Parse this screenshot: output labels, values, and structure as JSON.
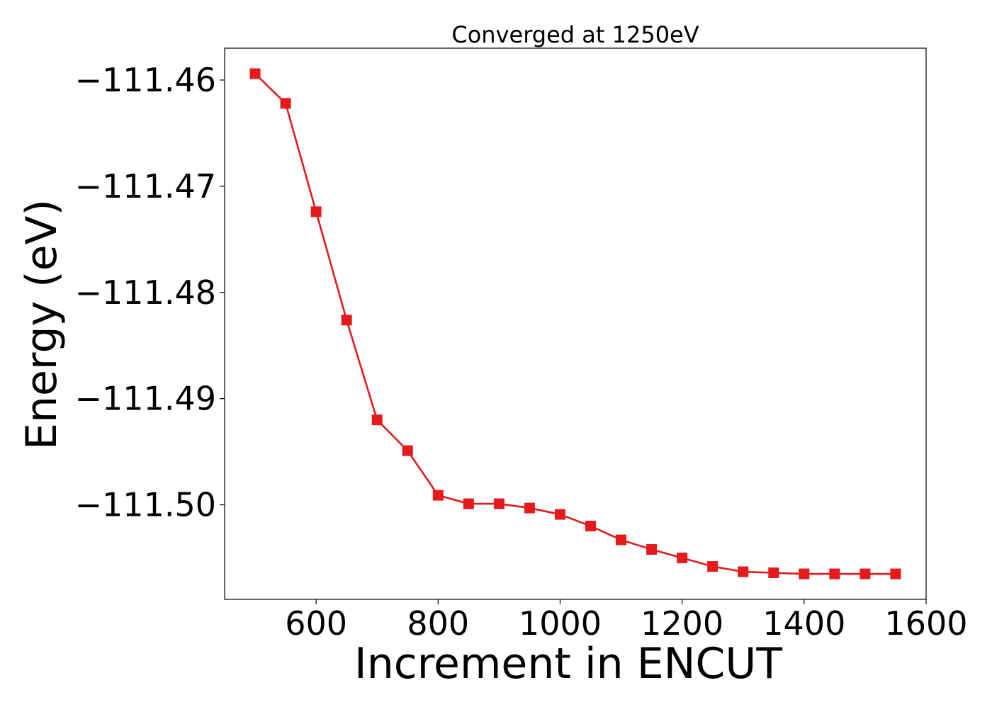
{
  "chart_data": {
    "type": "line",
    "title": "Converged at 1250eV",
    "xlabel": "Increment in ENCUT",
    "ylabel": "Energy (eV)",
    "xlim": [
      450,
      1600
    ],
    "ylim": [
      -111.5089,
      -111.457
    ],
    "x_ticks": [
      600,
      800,
      1000,
      1200,
      1400,
      1600
    ],
    "x_tick_labels": [
      "600",
      "800",
      "1000",
      "1200",
      "1400",
      "1600"
    ],
    "y_ticks": [
      -111.46,
      -111.47,
      -111.48,
      -111.49,
      -111.5
    ],
    "y_tick_labels": [
      "−111.46",
      "−111.47",
      "−111.48",
      "−111.49",
      "−111.50"
    ],
    "grid": false,
    "legend": "none",
    "series": [
      {
        "color": "#e41a1c",
        "marker": "square",
        "x": [
          500,
          550,
          600,
          650,
          700,
          750,
          800,
          850,
          900,
          950,
          1000,
          1050,
          1100,
          1150,
          1200,
          1250,
          1300,
          1350,
          1400,
          1450,
          1500,
          1550
        ],
        "y": [
          -111.4594,
          -111.4622,
          -111.4724,
          -111.4826,
          -111.492,
          -111.4949,
          -111.4991,
          -111.4999,
          -111.4999,
          -111.5003,
          -111.5009,
          -111.502,
          -111.5033,
          -111.5042,
          -111.505,
          -111.5058,
          -111.5063,
          -111.5064,
          -111.5065,
          -111.5065,
          -111.5065,
          -111.5065
        ]
      }
    ]
  }
}
